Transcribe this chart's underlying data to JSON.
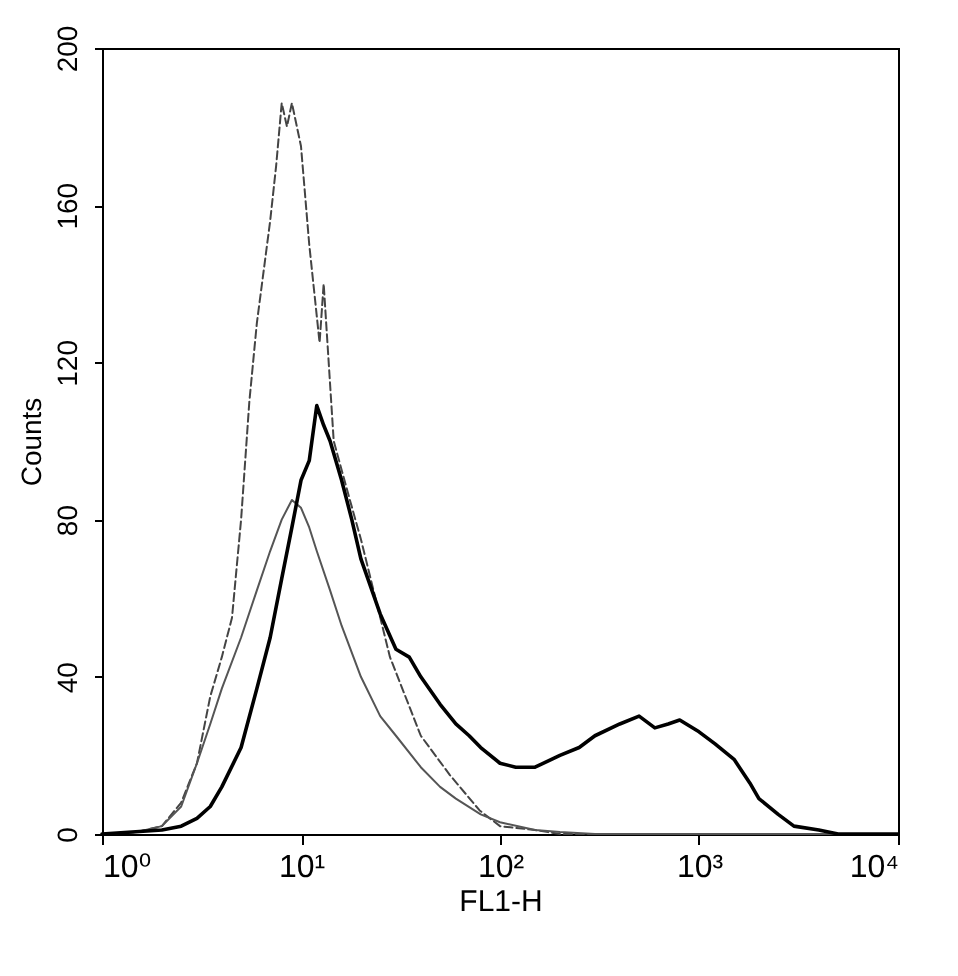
{
  "chart_data": {
    "type": "line",
    "xlabel": "FL1-H",
    "ylabel": "Counts",
    "log": "x",
    "grid": false,
    "marker": "none",
    "xlim": [
      1,
      10000
    ],
    "xticks": [
      {
        "value": 1,
        "label": "10⁰"
      },
      {
        "value": 10,
        "label": "10¹"
      },
      {
        "value": 100,
        "label": "10²"
      },
      {
        "value": 1000,
        "label": "10³"
      },
      {
        "value": 10000,
        "label": "10⁴"
      }
    ],
    "ylim": [
      0,
      200
    ],
    "yticks": [
      0,
      40,
      80,
      120,
      160,
      200
    ],
    "series": [
      {
        "color": "#444444",
        "line_style": "dashed",
        "x": [
          1,
          1.5,
          2,
          2.5,
          3,
          3.5,
          4,
          4.5,
          5,
          5.5,
          6,
          7,
          7.5,
          8,
          8.5,
          9,
          10,
          11,
          12.4,
          13,
          14.6,
          17.6,
          20,
          28,
          40,
          56,
          79,
          100,
          150,
          200,
          10000
        ],
        "values": [
          0,
          0.5,
          2,
          8,
          18,
          35,
          45,
          55,
          80,
          110,
          130,
          156,
          170,
          186,
          180,
          186,
          175,
          150,
          125,
          140,
          100,
          85,
          75,
          45,
          25,
          15,
          6,
          2,
          1,
          0,
          0
        ]
      },
      {
        "color": "#555555",
        "line_style": "solid",
        "x": [
          1,
          1.5,
          2,
          2.5,
          3,
          3.5,
          4,
          5,
          6,
          7,
          8,
          9,
          10,
          11,
          12,
          14,
          16,
          20,
          25,
          30,
          40,
          50,
          60,
          80,
          100,
          150,
          200,
          300,
          10000
        ],
        "values": [
          0,
          0.5,
          2,
          7,
          18,
          28,
          37,
          50,
          62,
          72,
          80,
          85,
          83,
          78,
          72,
          62,
          53,
          40,
          30,
          25,
          17,
          12,
          9,
          5,
          3,
          1,
          0.5,
          0,
          0
        ]
      },
      {
        "color": "#000000",
        "line_style": "solid",
        "x": [
          1,
          2,
          2.5,
          3,
          3.5,
          4,
          5,
          6,
          7,
          8,
          9,
          10,
          11,
          12,
          13,
          14,
          16,
          18,
          20,
          25,
          30,
          35,
          40,
          50,
          60,
          70,
          80,
          100,
          120,
          150,
          200,
          250,
          300,
          400,
          500,
          600,
          700,
          800,
          1000,
          1200,
          1500,
          1800,
          2000,
          2500,
          3000,
          4000,
          5000,
          10000
        ],
        "values": [
          0,
          1,
          2,
          4,
          7,
          12,
          22,
          37,
          50,
          65,
          78,
          90,
          95,
          109,
          104,
          100,
          90,
          80,
          70,
          56,
          47,
          45,
          40,
          33,
          28,
          25,
          22,
          18,
          17,
          17,
          20,
          22,
          25,
          28,
          30,
          27,
          28,
          29,
          26,
          23,
          19,
          13,
          9,
          5,
          2,
          1,
          0,
          0
        ]
      }
    ]
  }
}
